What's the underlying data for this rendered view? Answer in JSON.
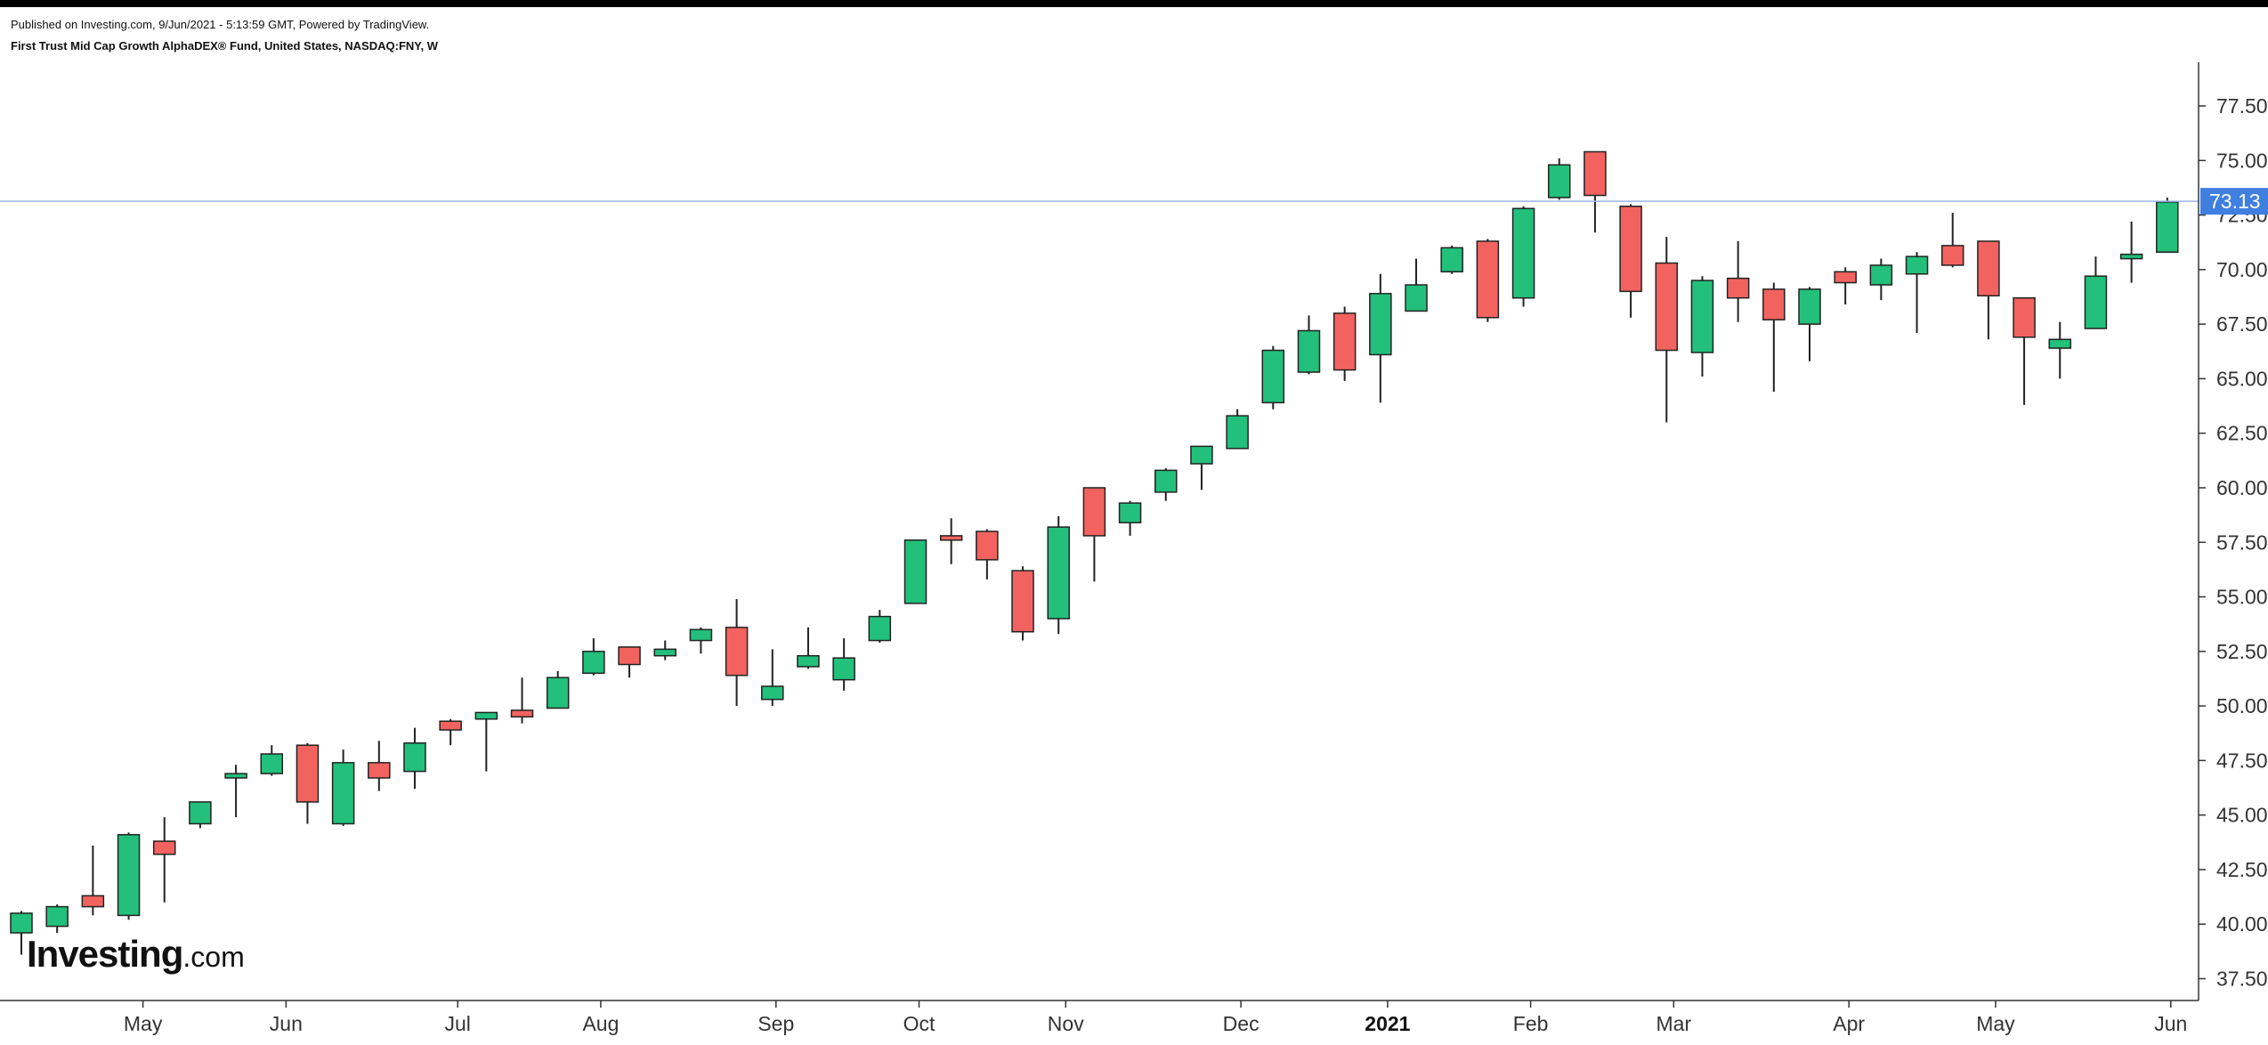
{
  "header": {
    "published": "Published on Investing.com, 9/Jun/2021 - 5:13:59 GMT, Powered by TradingView.",
    "symbol": "First Trust Mid Cap Growth AlphaDEX® Fund, United States, NASDAQ:FNY, W"
  },
  "logo": {
    "main": "Investing",
    "suffix": ".com"
  },
  "chart_data": {
    "type": "candlestick",
    "title": "First Trust Mid Cap Growth AlphaDEX® Fund, United States, NASDAQ:FNY, W",
    "xlabel": "",
    "ylabel": "",
    "ylim": [
      36.5,
      79.5
    ],
    "y_ticks": [
      "37.50",
      "40.00",
      "42.50",
      "45.00",
      "47.50",
      "50.00",
      "52.50",
      "55.00",
      "57.50",
      "60.00",
      "62.50",
      "65.00",
      "67.50",
      "70.00",
      "72.50",
      "75.00",
      "77.50"
    ],
    "x_ticks": [
      {
        "label": "May",
        "week": 3.4,
        "bold": false
      },
      {
        "label": "Jun",
        "week": 7.4,
        "bold": false
      },
      {
        "label": "Jul",
        "week": 12.2,
        "bold": false
      },
      {
        "label": "Aug",
        "week": 16.2,
        "bold": false
      },
      {
        "label": "Sep",
        "week": 21.1,
        "bold": false
      },
      {
        "label": "Oct",
        "week": 25.1,
        "bold": false
      },
      {
        "label": "Nov",
        "week": 29.2,
        "bold": false
      },
      {
        "label": "Dec",
        "week": 34.1,
        "bold": false
      },
      {
        "label": "2021",
        "week": 38.2,
        "bold": true
      },
      {
        "label": "Feb",
        "week": 42.2,
        "bold": false
      },
      {
        "label": "Mar",
        "week": 46.2,
        "bold": false
      },
      {
        "label": "Apr",
        "week": 51.1,
        "bold": false
      },
      {
        "label": "May",
        "week": 55.2,
        "bold": false
      },
      {
        "label": "Jun",
        "week": 60.1,
        "bold": false
      }
    ],
    "last_price": 73.13,
    "last_price_label": "73.13",
    "colors": {
      "up": "#22c07a",
      "down": "#f2635f",
      "wick": "#222222",
      "price_line": "#9bb3e6",
      "price_badge": "#3f7fe0"
    },
    "grid": false,
    "candles": [
      {
        "o": 39.6,
        "h": 40.6,
        "l": 38.6,
        "c": 40.5
      },
      {
        "o": 39.9,
        "h": 40.9,
        "l": 39.6,
        "c": 40.8
      },
      {
        "o": 41.3,
        "h": 43.6,
        "l": 40.4,
        "c": 40.8
      },
      {
        "o": 40.4,
        "h": 44.2,
        "l": 40.2,
        "c": 44.1
      },
      {
        "o": 43.8,
        "h": 44.9,
        "l": 41.0,
        "c": 43.2
      },
      {
        "o": 44.6,
        "h": 45.6,
        "l": 44.4,
        "c": 45.6
      },
      {
        "o": 46.7,
        "h": 47.3,
        "l": 44.9,
        "c": 46.9
      },
      {
        "o": 46.9,
        "h": 48.2,
        "l": 46.8,
        "c": 47.8
      },
      {
        "o": 48.2,
        "h": 48.3,
        "l": 44.6,
        "c": 45.6
      },
      {
        "o": 44.6,
        "h": 48.0,
        "l": 44.5,
        "c": 47.4
      },
      {
        "o": 47.4,
        "h": 48.4,
        "l": 46.1,
        "c": 46.7
      },
      {
        "o": 47.0,
        "h": 49.0,
        "l": 46.2,
        "c": 48.3
      },
      {
        "o": 49.3,
        "h": 49.4,
        "l": 48.2,
        "c": 48.9
      },
      {
        "o": 49.4,
        "h": 49.7,
        "l": 47.0,
        "c": 49.7
      },
      {
        "o": 49.8,
        "h": 51.3,
        "l": 49.2,
        "c": 49.5
      },
      {
        "o": 49.9,
        "h": 51.6,
        "l": 49.9,
        "c": 51.3
      },
      {
        "o": 51.5,
        "h": 53.1,
        "l": 51.4,
        "c": 52.5
      },
      {
        "o": 52.7,
        "h": 52.7,
        "l": 51.3,
        "c": 51.9
      },
      {
        "o": 52.3,
        "h": 53.0,
        "l": 52.1,
        "c": 52.6
      },
      {
        "o": 53.0,
        "h": 53.6,
        "l": 52.4,
        "c": 53.5
      },
      {
        "o": 53.6,
        "h": 54.9,
        "l": 50.0,
        "c": 51.4
      },
      {
        "o": 50.3,
        "h": 52.6,
        "l": 50.0,
        "c": 50.9
      },
      {
        "o": 51.8,
        "h": 53.6,
        "l": 51.7,
        "c": 52.3
      },
      {
        "o": 51.2,
        "h": 53.1,
        "l": 50.7,
        "c": 52.2
      },
      {
        "o": 53.0,
        "h": 54.4,
        "l": 52.9,
        "c": 54.1
      },
      {
        "o": 54.7,
        "h": 57.6,
        "l": 54.7,
        "c": 57.6
      },
      {
        "o": 57.8,
        "h": 58.6,
        "l": 56.5,
        "c": 57.6
      },
      {
        "o": 58.0,
        "h": 58.1,
        "l": 55.8,
        "c": 56.7
      },
      {
        "o": 56.2,
        "h": 56.4,
        "l": 53.0,
        "c": 53.4
      },
      {
        "o": 54.0,
        "h": 58.7,
        "l": 53.3,
        "c": 58.2
      },
      {
        "o": 60.0,
        "h": 60.0,
        "l": 55.7,
        "c": 57.8
      },
      {
        "o": 58.4,
        "h": 59.4,
        "l": 57.8,
        "c": 59.3
      },
      {
        "o": 59.8,
        "h": 60.9,
        "l": 59.4,
        "c": 60.8
      },
      {
        "o": 61.1,
        "h": 61.9,
        "l": 59.9,
        "c": 61.9
      },
      {
        "o": 61.8,
        "h": 63.6,
        "l": 61.8,
        "c": 63.3
      },
      {
        "o": 63.9,
        "h": 66.5,
        "l": 63.6,
        "c": 66.3
      },
      {
        "o": 65.3,
        "h": 67.9,
        "l": 65.2,
        "c": 67.2
      },
      {
        "o": 68.0,
        "h": 68.3,
        "l": 64.9,
        "c": 65.4
      },
      {
        "o": 66.1,
        "h": 69.8,
        "l": 63.9,
        "c": 68.9
      },
      {
        "o": 68.1,
        "h": 70.5,
        "l": 68.1,
        "c": 69.3
      },
      {
        "o": 69.9,
        "h": 71.1,
        "l": 69.8,
        "c": 71.0
      },
      {
        "o": 71.3,
        "h": 71.4,
        "l": 67.6,
        "c": 67.8
      },
      {
        "o": 68.7,
        "h": 72.9,
        "l": 68.3,
        "c": 72.8
      },
      {
        "o": 73.3,
        "h": 75.1,
        "l": 73.2,
        "c": 74.8
      },
      {
        "o": 75.4,
        "h": 75.4,
        "l": 71.7,
        "c": 73.4
      },
      {
        "o": 72.9,
        "h": 73.0,
        "l": 67.8,
        "c": 69.0
      },
      {
        "o": 70.3,
        "h": 71.5,
        "l": 63.0,
        "c": 66.3
      },
      {
        "o": 66.2,
        "h": 69.7,
        "l": 65.1,
        "c": 69.5
      },
      {
        "o": 69.6,
        "h": 71.3,
        "l": 67.6,
        "c": 68.7
      },
      {
        "o": 69.1,
        "h": 69.4,
        "l": 64.4,
        "c": 67.7
      },
      {
        "o": 67.5,
        "h": 69.2,
        "l": 65.8,
        "c": 69.1
      },
      {
        "o": 69.9,
        "h": 70.1,
        "l": 68.4,
        "c": 69.4
      },
      {
        "o": 69.3,
        "h": 70.5,
        "l": 68.6,
        "c": 70.2
      },
      {
        "o": 69.8,
        "h": 70.8,
        "l": 67.1,
        "c": 70.6
      },
      {
        "o": 71.1,
        "h": 72.6,
        "l": 70.1,
        "c": 70.2
      },
      {
        "o": 71.3,
        "h": 71.3,
        "l": 66.8,
        "c": 68.8
      },
      {
        "o": 68.7,
        "h": 68.7,
        "l": 63.8,
        "c": 66.9
      },
      {
        "o": 66.4,
        "h": 67.6,
        "l": 65.0,
        "c": 66.8
      },
      {
        "o": 67.3,
        "h": 70.6,
        "l": 67.3,
        "c": 69.7
      },
      {
        "o": 70.5,
        "h": 72.2,
        "l": 69.4,
        "c": 70.7
      },
      {
        "o": 70.8,
        "h": 73.3,
        "l": 70.8,
        "c": 73.1
      }
    ]
  }
}
